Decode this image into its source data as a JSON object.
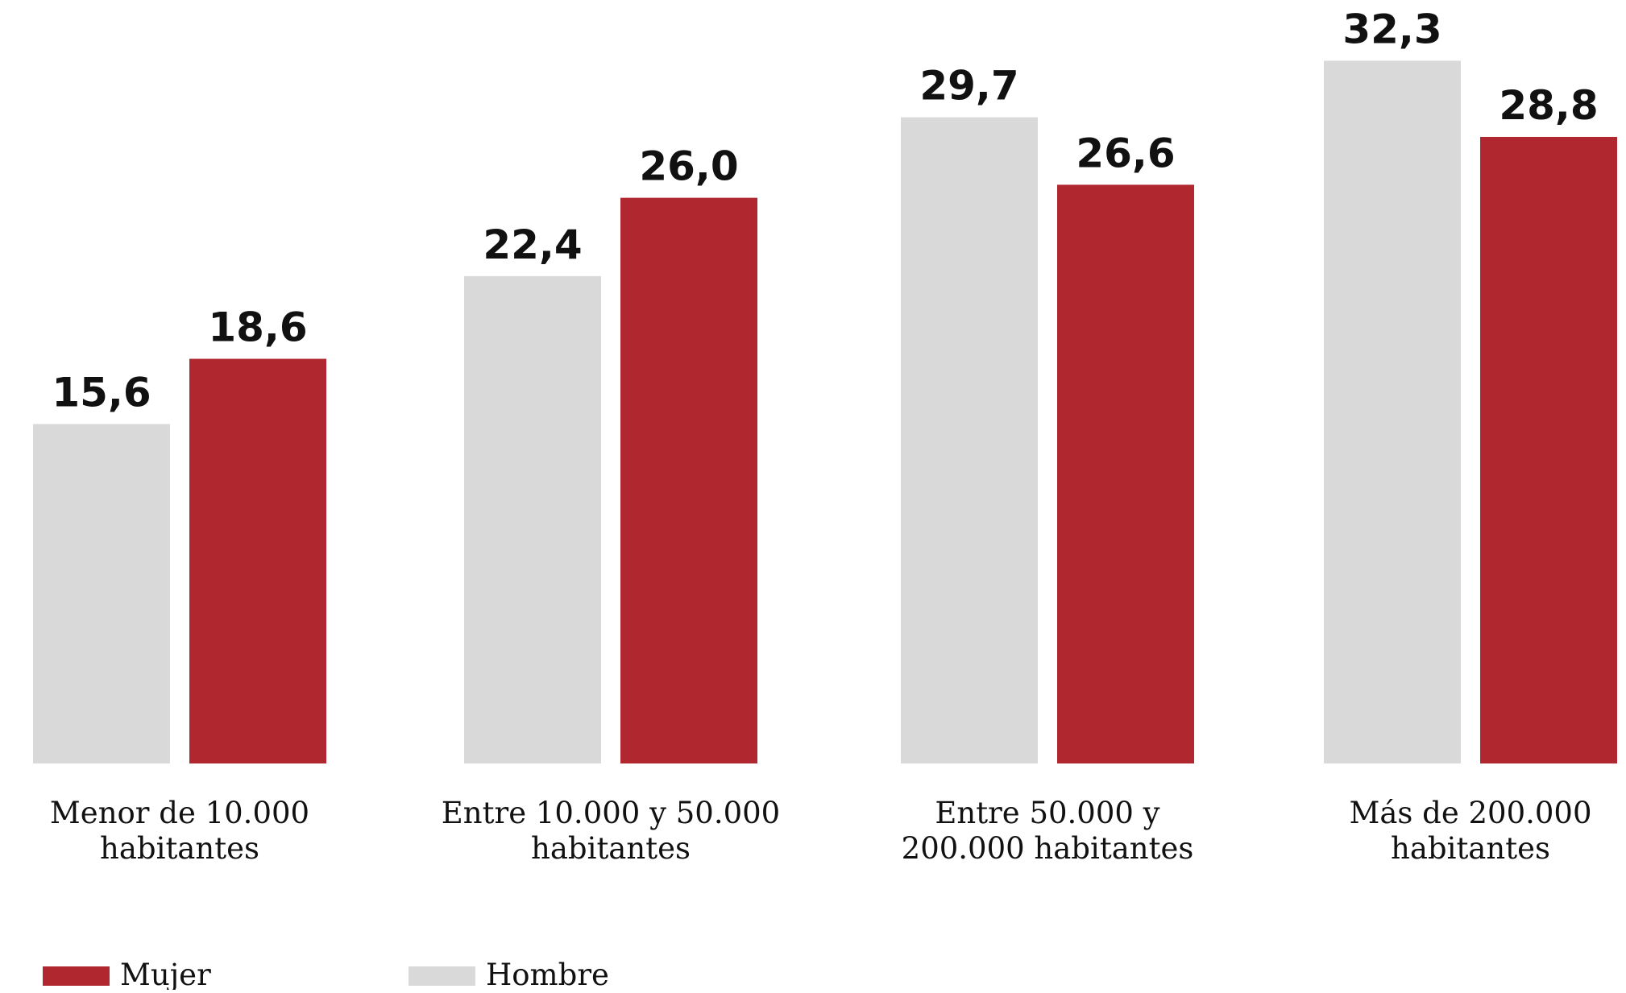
{
  "chart_data": {
    "type": "bar",
    "title": "",
    "xlabel": "",
    "ylabel": "",
    "grid": false,
    "value_labels": true,
    "legend_position": "bottom-left",
    "categories": [
      [
        "Menor de 10.000",
        "habitantes"
      ],
      [
        "Entre 10.000 y 50.000",
        "habitantes"
      ],
      [
        "Entre 50.000 y",
        "200.000 habitantes"
      ],
      [
        "Más de 200.000",
        "habitantes"
      ]
    ],
    "series": [
      {
        "name": "Hombre",
        "color": "#d9d9d9",
        "values": [
          15.6,
          22.4,
          29.7,
          32.3
        ],
        "labels": [
          "15,6",
          "22,4",
          "29,7",
          "32,3"
        ]
      },
      {
        "name": "Mujer",
        "color": "#b0272f",
        "values": [
          18.6,
          26.0,
          26.6,
          28.8
        ],
        "labels": [
          "18,6",
          "26,0",
          "26,6",
          "28,8"
        ]
      }
    ],
    "legend": [
      {
        "name": "Mujer",
        "color": "#b0272f"
      },
      {
        "name": "Hombre",
        "color": "#d9d9d9"
      }
    ],
    "ylim": [
      0,
      33.5
    ]
  }
}
